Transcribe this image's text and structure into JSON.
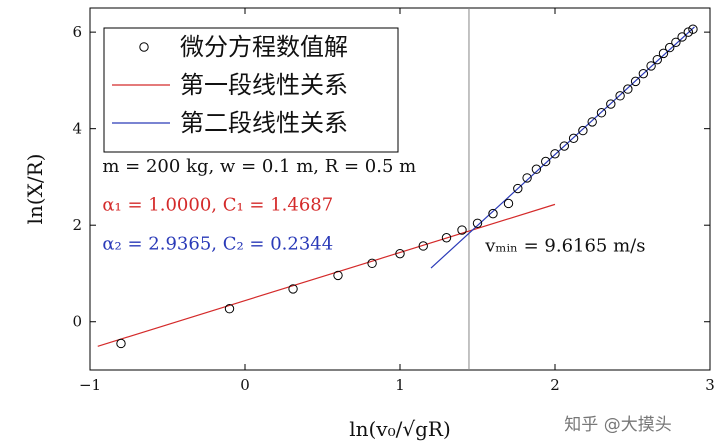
{
  "chart_data": {
    "type": "scatter",
    "xlabel": "ln(v₀/√gR)",
    "ylabel": "ln(X/R)",
    "xlim": [
      -1,
      3
    ],
    "ylim": [
      -1,
      6.5
    ],
    "x_ticks": [
      -1,
      0,
      1,
      2,
      3
    ],
    "y_ticks": [
      0,
      2,
      4,
      6
    ],
    "x_tick_labels": [
      "−1",
      "0",
      "1",
      "2",
      "3"
    ],
    "y_tick_labels": [
      "0",
      "2",
      "4",
      "6"
    ],
    "grid": false,
    "legend_position": "top-left",
    "series": [
      {
        "name": "微分方程数值解",
        "kind": "points",
        "marker": "open-circle",
        "color": "#000000",
        "x": [
          -0.8,
          -0.1,
          0.31,
          0.6,
          0.82,
          1.0,
          1.15,
          1.3,
          1.4,
          1.5,
          1.6,
          1.7,
          1.76,
          1.82,
          1.88,
          1.94,
          2.0,
          2.06,
          2.12,
          2.18,
          2.24,
          2.3,
          2.36,
          2.42,
          2.47,
          2.52,
          2.57,
          2.62,
          2.66,
          2.7,
          2.74,
          2.78,
          2.82,
          2.86,
          2.89
        ],
        "y": [
          -0.45,
          0.27,
          0.68,
          0.96,
          1.21,
          1.41,
          1.57,
          1.74,
          1.9,
          2.04,
          2.24,
          2.45,
          2.76,
          2.98,
          3.16,
          3.32,
          3.48,
          3.64,
          3.8,
          3.96,
          4.14,
          4.33,
          4.51,
          4.68,
          4.82,
          4.98,
          5.14,
          5.3,
          5.43,
          5.56,
          5.68,
          5.79,
          5.9,
          6.0,
          6.06
        ]
      },
      {
        "name": "第一段线性关系",
        "kind": "line",
        "color": "#d42a2a",
        "x": [
          -0.95,
          2.0
        ],
        "y": [
          -0.5087,
          2.4313
        ]
      },
      {
        "name": "第二段线性关系",
        "kind": "line",
        "color": "#2a3ab8",
        "x": [
          1.2,
          2.9
        ],
        "y": [
          1.1122,
          6.1081
        ]
      }
    ],
    "vline": {
      "x": 1.445,
      "color": "#888888"
    },
    "annotations": [
      {
        "text": "m = 200 kg, w = 0.1 m, R = 0.5 m",
        "x": -0.92,
        "y": 3.1,
        "color": "#111111"
      },
      {
        "text": "α₁ = 1.0000, C₁ = 1.4687",
        "x": -0.92,
        "y": 2.3,
        "color": "#d42a2a"
      },
      {
        "text": "α₂ = 2.9365, C₂ = 0.2344",
        "x": -0.92,
        "y": 1.5,
        "color": "#2a3ab8"
      },
      {
        "text": "vₘᵢₙ = 9.6165 m/s",
        "x": 1.55,
        "y": 1.45,
        "color": "#111111"
      }
    ]
  },
  "watermark": "知乎 @大摸头"
}
